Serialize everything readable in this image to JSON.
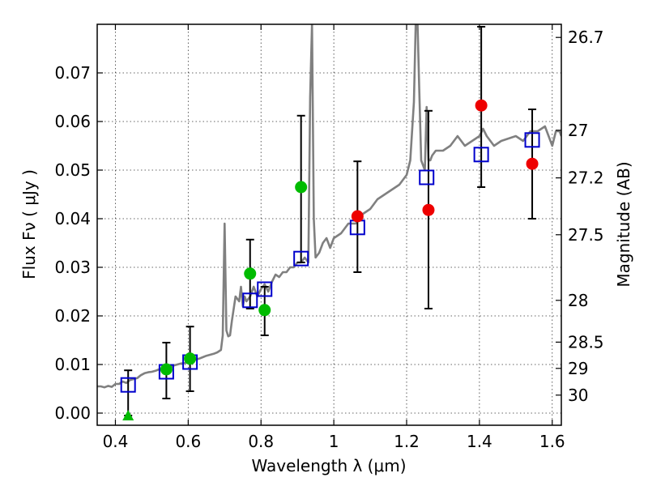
{
  "chart_data": {
    "type": "scatter",
    "title": "",
    "xlabel": "Wavelength  λ (μm)",
    "ylabel": "Flux  Fν  ( μJy )",
    "y2label": "Magnitude (AB)",
    "xlim": [
      0.35,
      1.625
    ],
    "ylim": [
      -0.0025,
      0.08
    ],
    "grid": true,
    "x_ticks": [
      0.4,
      0.6,
      0.8,
      1.0,
      1.2,
      1.4,
      1.6
    ],
    "x_tick_labels": [
      "0.4",
      "0.6",
      "0.8",
      "1",
      "1.2",
      "1.4",
      "1.6"
    ],
    "y_ticks": [
      0.0,
      0.01,
      0.02,
      0.03,
      0.04,
      0.05,
      0.06,
      0.07
    ],
    "y_tick_labels": [
      "0.00",
      "0.01",
      "0.02",
      "0.03",
      "0.04",
      "0.05",
      "0.06",
      "0.07"
    ],
    "y2_ticks": [
      {
        "label": "26.7",
        "flux": 0.0773
      },
      {
        "label": "27",
        "flux": 0.0582
      },
      {
        "label": "27.2",
        "flux": 0.0484
      },
      {
        "label": "27.5",
        "flux": 0.0367
      },
      {
        "label": "28",
        "flux": 0.0232
      },
      {
        "label": "28.5",
        "flux": 0.0146
      },
      {
        "label": "29",
        "flux": 0.0092
      },
      {
        "label": "30",
        "flux": 0.0037
      }
    ],
    "series": [
      {
        "name": "Model spectrum",
        "kind": "line",
        "color": "#808080",
        "x": [
          0.35,
          0.36,
          0.37,
          0.38,
          0.39,
          0.4,
          0.41,
          0.42,
          0.43,
          0.44,
          0.45,
          0.46,
          0.47,
          0.48,
          0.49,
          0.5,
          0.51,
          0.52,
          0.53,
          0.54,
          0.55,
          0.56,
          0.57,
          0.58,
          0.59,
          0.6,
          0.61,
          0.62,
          0.63,
          0.64,
          0.65,
          0.66,
          0.67,
          0.68,
          0.69,
          0.695,
          0.7,
          0.705,
          0.71,
          0.715,
          0.72,
          0.73,
          0.74,
          0.745,
          0.75,
          0.755,
          0.76,
          0.77,
          0.78,
          0.79,
          0.8,
          0.81,
          0.82,
          0.83,
          0.84,
          0.85,
          0.86,
          0.87,
          0.88,
          0.89,
          0.9,
          0.91,
          0.92,
          0.93,
          0.935,
          0.94,
          0.945,
          0.95,
          0.96,
          0.97,
          0.98,
          0.99,
          1.0,
          1.02,
          1.04,
          1.06,
          1.08,
          1.1,
          1.12,
          1.14,
          1.16,
          1.18,
          1.2,
          1.21,
          1.22,
          1.225,
          1.23,
          1.235,
          1.24,
          1.25,
          1.255,
          1.26,
          1.265,
          1.27,
          1.28,
          1.3,
          1.32,
          1.34,
          1.36,
          1.38,
          1.4,
          1.41,
          1.42,
          1.44,
          1.46,
          1.48,
          1.5,
          1.52,
          1.54,
          1.56,
          1.58,
          1.6,
          1.61,
          1.62,
          1.625
        ],
        "y": [
          0.0055,
          0.0055,
          0.0053,
          0.0056,
          0.0054,
          0.006,
          0.006,
          0.0065,
          0.0062,
          0.0068,
          0.007,
          0.0072,
          0.0078,
          0.0082,
          0.0084,
          0.0085,
          0.0087,
          0.009,
          0.009,
          0.0095,
          0.0093,
          0.0098,
          0.01,
          0.0102,
          0.0103,
          0.0105,
          0.0108,
          0.011,
          0.0112,
          0.0115,
          0.0118,
          0.012,
          0.0122,
          0.0125,
          0.013,
          0.016,
          0.039,
          0.017,
          0.0158,
          0.016,
          0.019,
          0.024,
          0.023,
          0.026,
          0.022,
          0.024,
          0.023,
          0.024,
          0.026,
          0.024,
          0.0255,
          0.0265,
          0.025,
          0.027,
          0.0285,
          0.028,
          0.029,
          0.029,
          0.03,
          0.03,
          0.031,
          0.031,
          0.032,
          0.031,
          0.065,
          0.08,
          0.04,
          0.032,
          0.033,
          0.035,
          0.036,
          0.034,
          0.036,
          0.037,
          0.039,
          0.039,
          0.041,
          0.042,
          0.044,
          0.045,
          0.046,
          0.047,
          0.049,
          0.052,
          0.064,
          0.08,
          0.08,
          0.066,
          0.052,
          0.05,
          0.063,
          0.052,
          0.052,
          0.053,
          0.054,
          0.054,
          0.055,
          0.057,
          0.055,
          0.056,
          0.057,
          0.0585,
          0.057,
          0.055,
          0.056,
          0.0565,
          0.057,
          0.056,
          0.058,
          0.058,
          0.059,
          0.055,
          0.058,
          0.058,
          0.057
        ]
      },
      {
        "name": "Model photometry",
        "kind": "open-square",
        "color": "#0000cc",
        "x": [
          0.435,
          0.54,
          0.605,
          0.77,
          0.81,
          0.91,
          1.065,
          1.255,
          1.405,
          1.545
        ],
        "y": [
          0.0058,
          0.0085,
          0.0105,
          0.0232,
          0.0255,
          0.0318,
          0.0382,
          0.0485,
          0.0532,
          0.0562
        ]
      },
      {
        "name": "Observed (green)",
        "kind": "filled-circle",
        "color": "#00bb00",
        "x": [
          0.54,
          0.605,
          0.77,
          0.81,
          0.91
        ],
        "y": [
          0.009,
          0.0112,
          0.0287,
          0.0212,
          0.0465
        ],
        "yerr_low": [
          0.003,
          0.0045,
          0.0215,
          0.016,
          0.031
        ],
        "yerr_high": [
          0.0145,
          0.0178,
          0.0357,
          0.026,
          0.0612
        ]
      },
      {
        "name": "Observed (red)",
        "kind": "filled-circle",
        "color": "#ee0000",
        "x": [
          1.065,
          1.26,
          1.405,
          1.545
        ],
        "y": [
          0.0405,
          0.0418,
          0.0633,
          0.0513
        ],
        "yerr_low": [
          0.029,
          0.0215,
          0.0465,
          0.04
        ],
        "yerr_high": [
          0.0518,
          0.0622,
          0.0795,
          0.0625
        ]
      },
      {
        "name": "Upper limit",
        "kind": "triangle",
        "color": "#00bb00",
        "x": [
          0.435
        ],
        "y": [
          -0.0005
        ],
        "yerr_low": [
          -0.0005
        ],
        "yerr_high": [
          0.0088
        ]
      }
    ]
  }
}
